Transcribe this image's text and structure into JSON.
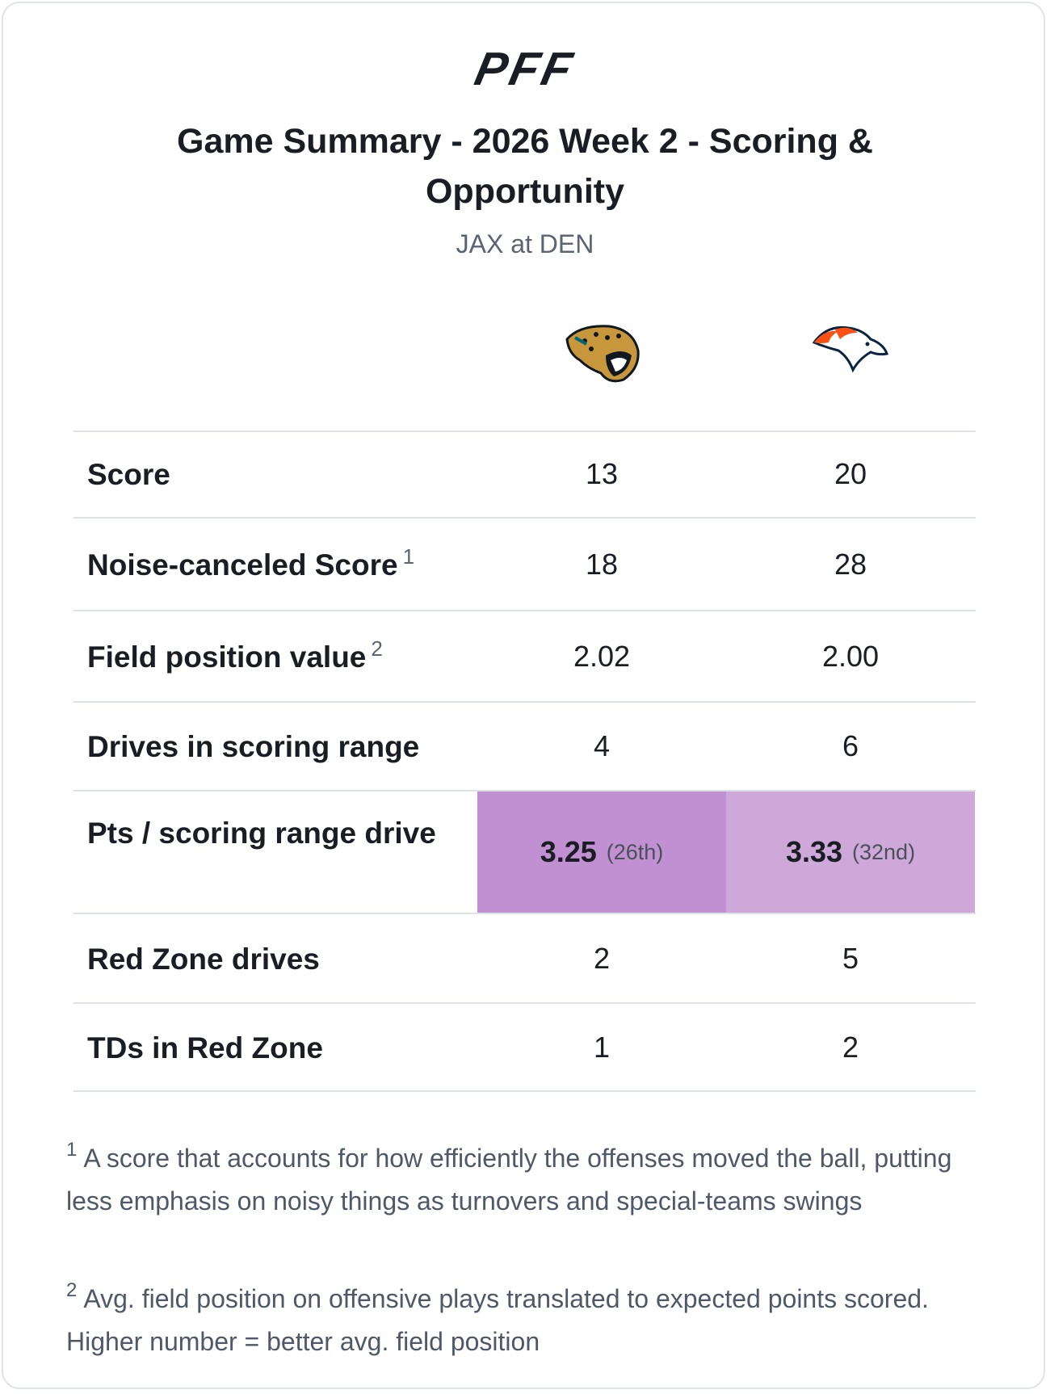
{
  "logo": "PFF",
  "header": {
    "title": "Game Summary - 2026 Week 2 - Scoring & Opportunity",
    "subtitle": "JAX at DEN"
  },
  "table": {
    "rows": [
      {
        "label": "Score",
        "values": [
          "13",
          "20"
        ]
      },
      {
        "label": "Noise-canceled Score",
        "note": "1",
        "values": [
          "18",
          "28"
        ]
      },
      {
        "label": "Field position value",
        "note": "2",
        "values": [
          "2.02",
          "2.00"
        ]
      },
      {
        "label": "Drives in scoring range",
        "values": [
          "4",
          "6"
        ]
      },
      {
        "label": "Pts / scoring range drive",
        "values": [
          "3.25",
          "3.33"
        ],
        "ranks": [
          "(26th)",
          "(32nd)"
        ]
      },
      {
        "label": "Red Zone drives",
        "values": [
          "2",
          "5"
        ]
      },
      {
        "label": "TDs in Red Zone",
        "values": [
          "1",
          "2"
        ]
      }
    ]
  },
  "footnotes": [
    {
      "marker": "1",
      "text": "A score that accounts for how efficiently the offenses moved the ball, putting less emphasis on noisy things as turnovers and special-teams swings"
    },
    {
      "marker": "2",
      "text": "Avg. field position on offensive plays translated to expected points scored. Higher number = better avg. field position"
    }
  ]
}
